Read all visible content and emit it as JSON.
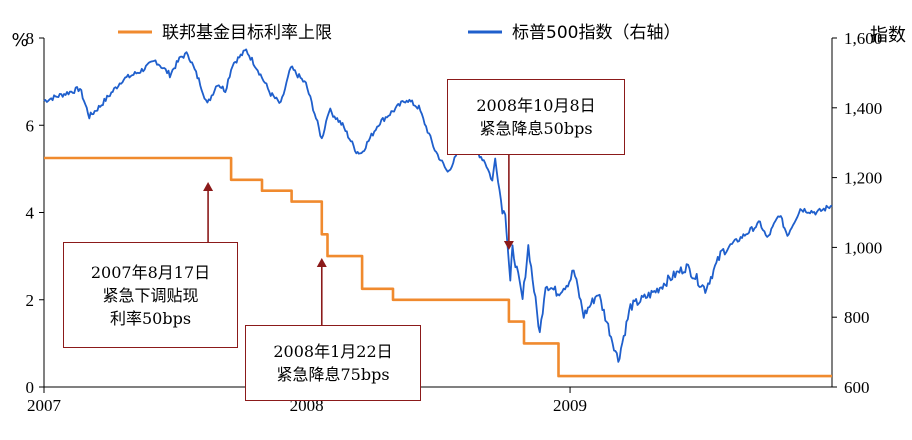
{
  "chart_data": {
    "type": "line",
    "legend": {
      "position": "top",
      "orientation": "horizontal"
    },
    "left_axis": {
      "unit_label": "%",
      "ticks": [
        "0",
        "2",
        "4",
        "6",
        "8"
      ],
      "range": [
        0,
        8
      ]
    },
    "right_axis": {
      "unit_label": "指数",
      "ticks": [
        "600",
        "800",
        "1,000",
        "1,200",
        "1,400",
        "1,600"
      ],
      "range": [
        600,
        1600
      ]
    },
    "x_axis": {
      "ticks": [
        "2007",
        "2008",
        "2009"
      ],
      "range": [
        "2007-01-01",
        "2009-12-31"
      ]
    },
    "series": [
      {
        "name": "联邦基金目标利率上限",
        "axis": "left",
        "color": "#F08A2E",
        "step": true,
        "points": [
          [
            "2007-01-01",
            5.25
          ],
          [
            "2007-09-18",
            4.75
          ],
          [
            "2007-10-31",
            4.5
          ],
          [
            "2007-12-11",
            4.25
          ],
          [
            "2008-01-22",
            3.5
          ],
          [
            "2008-01-30",
            3.0
          ],
          [
            "2008-03-18",
            2.25
          ],
          [
            "2008-04-30",
            2.0
          ],
          [
            "2008-10-08",
            1.5
          ],
          [
            "2008-10-29",
            1.0
          ],
          [
            "2008-12-16",
            0.25
          ],
          [
            "2009-12-31",
            0.25
          ]
        ]
      },
      {
        "name": "标普500指数（右轴）",
        "axis": "right",
        "color": "#1F5FCC",
        "points": [
          [
            "2007-01-01",
            1420
          ],
          [
            "2007-02-20",
            1455
          ],
          [
            "2007-03-05",
            1375
          ],
          [
            "2007-03-20",
            1405
          ],
          [
            "2007-04-20",
            1480
          ],
          [
            "2007-05-15",
            1505
          ],
          [
            "2007-06-05",
            1535
          ],
          [
            "2007-06-25",
            1495
          ],
          [
            "2007-07-10",
            1545
          ],
          [
            "2007-07-20",
            1555
          ],
          [
            "2007-08-06",
            1470
          ],
          [
            "2007-08-16",
            1410
          ],
          [
            "2007-08-30",
            1470
          ],
          [
            "2007-09-10",
            1450
          ],
          [
            "2007-09-20",
            1525
          ],
          [
            "2007-10-09",
            1565
          ],
          [
            "2007-10-25",
            1510
          ],
          [
            "2007-11-12",
            1440
          ],
          [
            "2007-11-26",
            1410
          ],
          [
            "2007-12-10",
            1515
          ],
          [
            "2007-12-31",
            1468
          ],
          [
            "2008-01-10",
            1400
          ],
          [
            "2008-01-22",
            1310
          ],
          [
            "2008-02-01",
            1395
          ],
          [
            "2008-02-20",
            1350
          ],
          [
            "2008-03-10",
            1275
          ],
          [
            "2008-03-17",
            1270
          ],
          [
            "2008-04-10",
            1355
          ],
          [
            "2008-05-19",
            1425
          ],
          [
            "2008-06-05",
            1400
          ],
          [
            "2008-06-27",
            1280
          ],
          [
            "2008-07-15",
            1215
          ],
          [
            "2008-08-01",
            1280
          ],
          [
            "2008-08-15",
            1300
          ],
          [
            "2008-09-05",
            1245
          ],
          [
            "2008-09-15",
            1190
          ],
          [
            "2008-09-19",
            1255
          ],
          [
            "2008-09-29",
            1105
          ],
          [
            "2008-10-03",
            1100
          ],
          [
            "2008-10-10",
            900
          ],
          [
            "2008-10-13",
            1000
          ],
          [
            "2008-10-27",
            850
          ],
          [
            "2008-11-04",
            1005
          ],
          [
            "2008-11-20",
            752
          ],
          [
            "2008-11-28",
            895
          ],
          [
            "2008-12-15",
            870
          ],
          [
            "2008-12-31",
            903
          ],
          [
            "2009-01-06",
            935
          ],
          [
            "2009-01-20",
            805
          ],
          [
            "2009-02-09",
            870
          ],
          [
            "2009-02-25",
            760
          ],
          [
            "2009-03-09",
            677
          ],
          [
            "2009-03-26",
            830
          ],
          [
            "2009-04-30",
            875
          ],
          [
            "2009-05-19",
            910
          ],
          [
            "2009-06-12",
            945
          ],
          [
            "2009-07-08",
            880
          ],
          [
            "2009-07-31",
            987
          ],
          [
            "2009-08-28",
            1030
          ],
          [
            "2009-09-22",
            1070
          ],
          [
            "2009-10-02",
            1025
          ],
          [
            "2009-10-19",
            1095
          ],
          [
            "2009-10-30",
            1035
          ],
          [
            "2009-11-17",
            1110
          ],
          [
            "2009-12-10",
            1100
          ],
          [
            "2009-12-31",
            1120
          ]
        ]
      }
    ],
    "annotations": [
      {
        "lines": [
          "2007年8月17日",
          "紧急下调贴现",
          "利率50bps"
        ],
        "arrow_to": "2007-08-17"
      },
      {
        "lines": [
          "2008年1月22日",
          "紧急降息75bps"
        ],
        "arrow_to": "2008-01-22"
      },
      {
        "lines": [
          "2008年10月8日",
          "紧急降息50bps"
        ],
        "arrow_to": "2008-10-08"
      }
    ]
  }
}
